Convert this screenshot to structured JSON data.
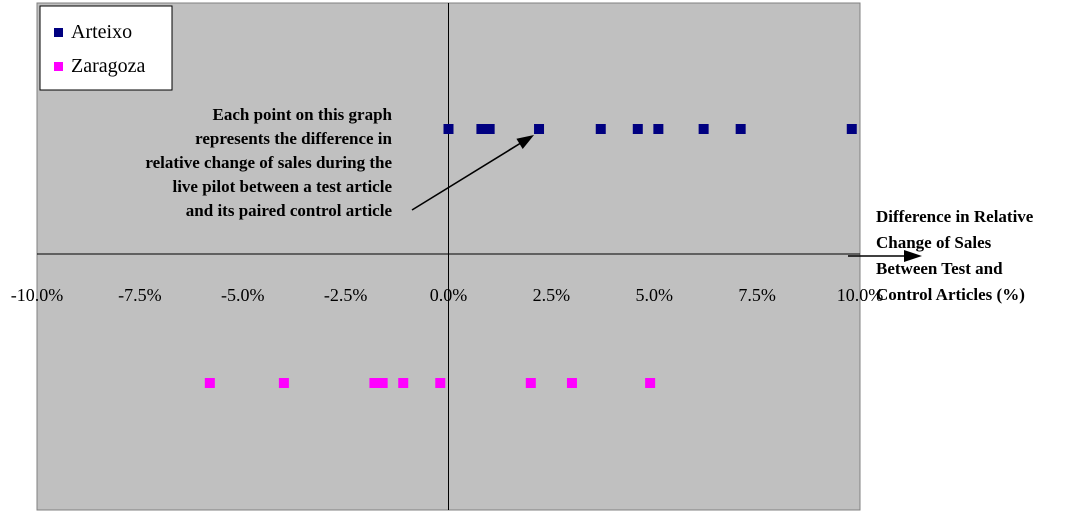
{
  "chart_data": {
    "type": "scatter",
    "xlim": [
      -10.0,
      10.0
    ],
    "x_ticks": [
      -10.0,
      -7.5,
      -5.0,
      -2.5,
      0.0,
      2.5,
      5.0,
      7.5,
      10.0
    ],
    "x_tick_labels": [
      "-10.0%",
      "-7.5%",
      "-5.0%",
      "-2.5%",
      "0.0%",
      "2.5%",
      "5.0%",
      "7.5%",
      "10.0%"
    ],
    "xlabel": [
      "Difference in Relative",
      "Change of Sales",
      "Between Test and",
      "Control Articles (%)"
    ],
    "ylabel": "",
    "grid": false,
    "legend_position": "top-left",
    "plot_background": "#c0c0c0",
    "series": [
      {
        "name": "Arteixo",
        "color": "#000080",
        "x": [
          0.0,
          0.8,
          1.0,
          2.2,
          3.7,
          4.6,
          5.1,
          6.2,
          7.1,
          9.8
        ],
        "y": [
          1,
          1,
          1,
          1,
          1,
          1,
          1,
          1,
          1,
          1
        ]
      },
      {
        "name": "Zaragoza",
        "color": "#ff00ff",
        "x": [
          -5.8,
          -4.0,
          -1.8,
          -1.6,
          -1.1,
          -0.2,
          2.0,
          3.0,
          4.9
        ],
        "y": [
          -1,
          -1,
          -1,
          -1,
          -1,
          -1,
          -1,
          -1,
          -1
        ]
      }
    ],
    "annotation": {
      "lines": [
        "Each point on this graph",
        "represents the difference in",
        "relative change of sales during the",
        "live pilot between a test article",
        "and its paired control article"
      ],
      "points_to_x": 2.2,
      "points_to_series": "Arteixo"
    }
  }
}
